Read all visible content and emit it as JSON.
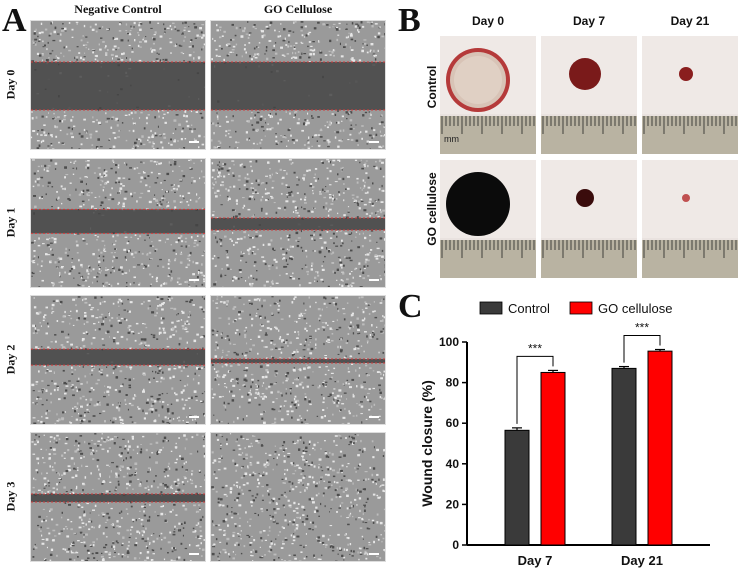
{
  "panel_a": {
    "letter": "A",
    "columns": [
      "Negative Control",
      "GO Cellulose"
    ],
    "rows": [
      "Day 0",
      "Day 1",
      "Day 2",
      "Day 3"
    ]
  },
  "panel_b": {
    "letter": "B",
    "columns": [
      "Day 0",
      "Day 7",
      "Day 21"
    ],
    "rows": [
      "Control",
      "GO cellulose"
    ],
    "ruler_unit": "mm"
  },
  "panel_c": {
    "letter": "C",
    "colors": {
      "control": "#3a3a3a",
      "go": "#ff0000"
    },
    "chart_data": {
      "type": "bar",
      "categories": [
        "Day 7",
        "Day 21"
      ],
      "series": [
        {
          "name": "Control",
          "values": [
            56.5,
            87
          ],
          "errors": [
            1.2,
            0.9
          ]
        },
        {
          "name": "GO cellulose",
          "values": [
            85,
            95.5
          ],
          "errors": [
            1.0,
            0.8
          ]
        }
      ],
      "ylabel": "Wound closure (%)",
      "ylim": [
        0,
        100
      ],
      "yticks": [
        0,
        20,
        40,
        60,
        80,
        100
      ],
      "significance": [
        "***",
        "***"
      ],
      "legend_position": "top"
    }
  }
}
